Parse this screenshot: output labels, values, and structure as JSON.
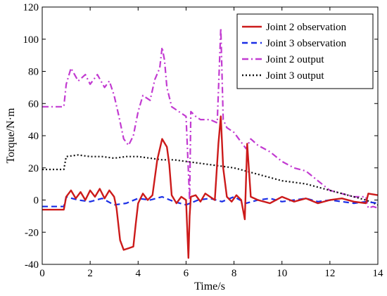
{
  "chart_data": {
    "type": "line",
    "xlabel": "Time/s",
    "ylabel": "Torque/N·m",
    "xlim": [
      0,
      14
    ],
    "ylim": [
      -40,
      120
    ],
    "xticks": [
      0,
      2,
      4,
      6,
      8,
      10,
      12,
      14
    ],
    "yticks": [
      -40,
      -20,
      0,
      20,
      40,
      60,
      80,
      100,
      120
    ],
    "grid": false,
    "legend_position": "top-right",
    "series": [
      {
        "name": "Joint 2 observation",
        "color": "#cc1a1a",
        "style": "solid",
        "x": [
          0,
          0.9,
          1.0,
          1.2,
          1.4,
          1.6,
          1.8,
          2.0,
          2.2,
          2.4,
          2.6,
          2.8,
          3.0,
          3.1,
          3.25,
          3.4,
          3.6,
          3.8,
          3.9,
          4.0,
          4.2,
          4.4,
          4.6,
          4.8,
          5.0,
          5.2,
          5.3,
          5.4,
          5.6,
          5.8,
          6.0,
          6.1,
          6.15,
          6.2,
          6.4,
          6.6,
          6.8,
          7.0,
          7.2,
          7.35,
          7.45,
          7.55,
          7.7,
          7.9,
          8.1,
          8.3,
          8.45,
          8.55,
          8.7,
          9.0,
          9.5,
          10.0,
          10.5,
          11.0,
          11.5,
          12.0,
          12.5,
          13.0,
          13.5,
          13.6,
          14.0
        ],
        "values": [
          -6,
          -6,
          2,
          6,
          1,
          5,
          0,
          6,
          2,
          7,
          1,
          6,
          2,
          -5,
          -25,
          -31,
          -30,
          -29,
          -15,
          -2,
          4,
          0,
          3,
          25,
          38,
          33,
          22,
          3,
          -2,
          2,
          0,
          -36,
          -10,
          2,
          3,
          -1,
          4,
          2,
          0,
          35,
          52,
          20,
          2,
          -1,
          3,
          0,
          -12,
          35,
          2,
          0,
          -2,
          2,
          -1,
          1,
          -2,
          0,
          1,
          -1,
          -2,
          4,
          3
        ]
      },
      {
        "name": "Joint 3 observation",
        "color": "#1a2ee6",
        "style": "dash",
        "x": [
          0,
          0.9,
          1.0,
          1.5,
          2.0,
          2.5,
          3.0,
          3.5,
          4.0,
          4.5,
          5.0,
          5.5,
          6.0,
          6.5,
          7.0,
          7.5,
          8.0,
          8.5,
          9.0,
          9.5,
          10.0,
          10.5,
          11.0,
          11.5,
          12.0,
          12.5,
          13.0,
          13.5,
          14.0
        ],
        "values": [
          -4,
          -4,
          2,
          0,
          -1,
          1,
          -3,
          -2,
          1,
          0,
          2,
          -1,
          -3,
          0,
          1,
          -1,
          2,
          -2,
          0,
          1,
          -1,
          0,
          1,
          -1,
          0,
          -1,
          -2,
          -1,
          -2
        ]
      },
      {
        "name": "Joint 2 output",
        "color": "#c23bd1",
        "style": "dashdot",
        "x": [
          0,
          0.9,
          1.0,
          1.2,
          1.5,
          1.8,
          2.0,
          2.3,
          2.6,
          2.8,
          3.0,
          3.2,
          3.4,
          3.6,
          3.8,
          4.0,
          4.2,
          4.5,
          4.7,
          4.9,
          5.0,
          5.1,
          5.2,
          5.4,
          5.6,
          5.8,
          6.0,
          6.15,
          6.2,
          6.4,
          6.6,
          7.0,
          7.3,
          7.45,
          7.55,
          7.7,
          8.0,
          8.3,
          8.5,
          8.7,
          9.0,
          9.5,
          10.0,
          10.5,
          11.0,
          11.5,
          12.0,
          12.5,
          13.0,
          13.5,
          13.6,
          13.8,
          14.0
        ],
        "values": [
          58,
          58,
          72,
          82,
          74,
          78,
          72,
          78,
          70,
          74,
          65,
          52,
          38,
          34,
          40,
          55,
          65,
          62,
          75,
          82,
          95,
          87,
          70,
          58,
          56,
          54,
          52,
          0,
          55,
          52,
          50,
          50,
          48,
          107,
          50,
          45,
          42,
          36,
          32,
          38,
          34,
          30,
          24,
          20,
          18,
          12,
          6,
          4,
          2,
          2,
          -5,
          -4,
          -5
        ]
      },
      {
        "name": "Joint 3 output",
        "color": "#111111",
        "style": "dot",
        "x": [
          0,
          0.9,
          1.0,
          1.5,
          2.0,
          2.5,
          3.0,
          3.5,
          4.0,
          4.5,
          5.0,
          5.5,
          6.0,
          6.5,
          7.0,
          7.5,
          8.0,
          8.5,
          9.0,
          9.5,
          10.0,
          10.5,
          11.0,
          11.5,
          12.0,
          12.5,
          13.0,
          13.5,
          14.0
        ],
        "values": [
          19,
          19,
          27,
          28,
          27,
          27,
          26,
          27,
          27,
          26,
          25,
          25,
          24,
          23,
          22,
          21,
          20,
          18,
          16,
          14,
          12,
          11,
          10,
          8,
          6,
          4,
          2,
          0,
          -3
        ]
      }
    ]
  }
}
